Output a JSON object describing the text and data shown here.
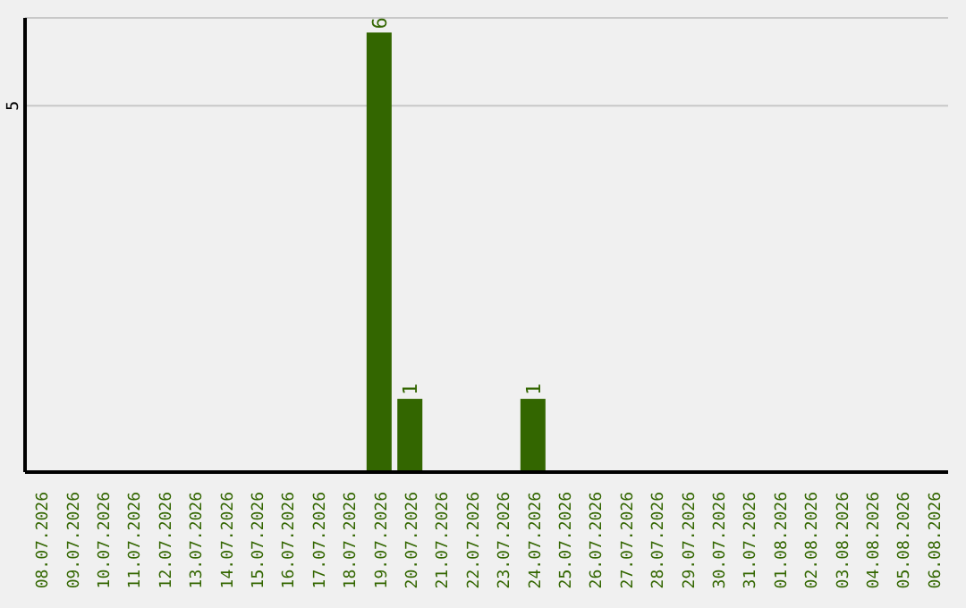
{
  "chart_data": {
    "type": "bar",
    "categories": [
      "08.07.2026",
      "09.07.2026",
      "10.07.2026",
      "11.07.2026",
      "12.07.2026",
      "13.07.2026",
      "14.07.2026",
      "15.07.2026",
      "16.07.2026",
      "17.07.2026",
      "18.07.2026",
      "19.07.2026",
      "20.07.2026",
      "21.07.2026",
      "22.07.2026",
      "23.07.2026",
      "24.07.2026",
      "25.07.2026",
      "26.07.2026",
      "27.07.2026",
      "28.07.2026",
      "29.07.2026",
      "30.07.2026",
      "31.07.2026",
      "01.08.2026",
      "02.08.2026",
      "03.08.2026",
      "04.08.2026",
      "05.08.2026",
      "06.08.2026"
    ],
    "values": [
      0,
      0,
      0,
      0,
      0,
      0,
      0,
      0,
      0,
      0,
      0,
      6,
      1,
      0,
      0,
      0,
      1,
      0,
      0,
      0,
      0,
      0,
      0,
      0,
      0,
      0,
      0,
      0,
      0,
      0
    ],
    "value_labels": [
      null,
      null,
      null,
      null,
      null,
      null,
      null,
      null,
      null,
      null,
      null,
      "6",
      "1",
      null,
      null,
      null,
      "1",
      null,
      null,
      null,
      null,
      null,
      null,
      null,
      null,
      null,
      null,
      null,
      null,
      null
    ],
    "color": "#336600",
    "ylim": [
      0,
      6.2
    ],
    "yticks": [
      5
    ],
    "grid": "y"
  }
}
